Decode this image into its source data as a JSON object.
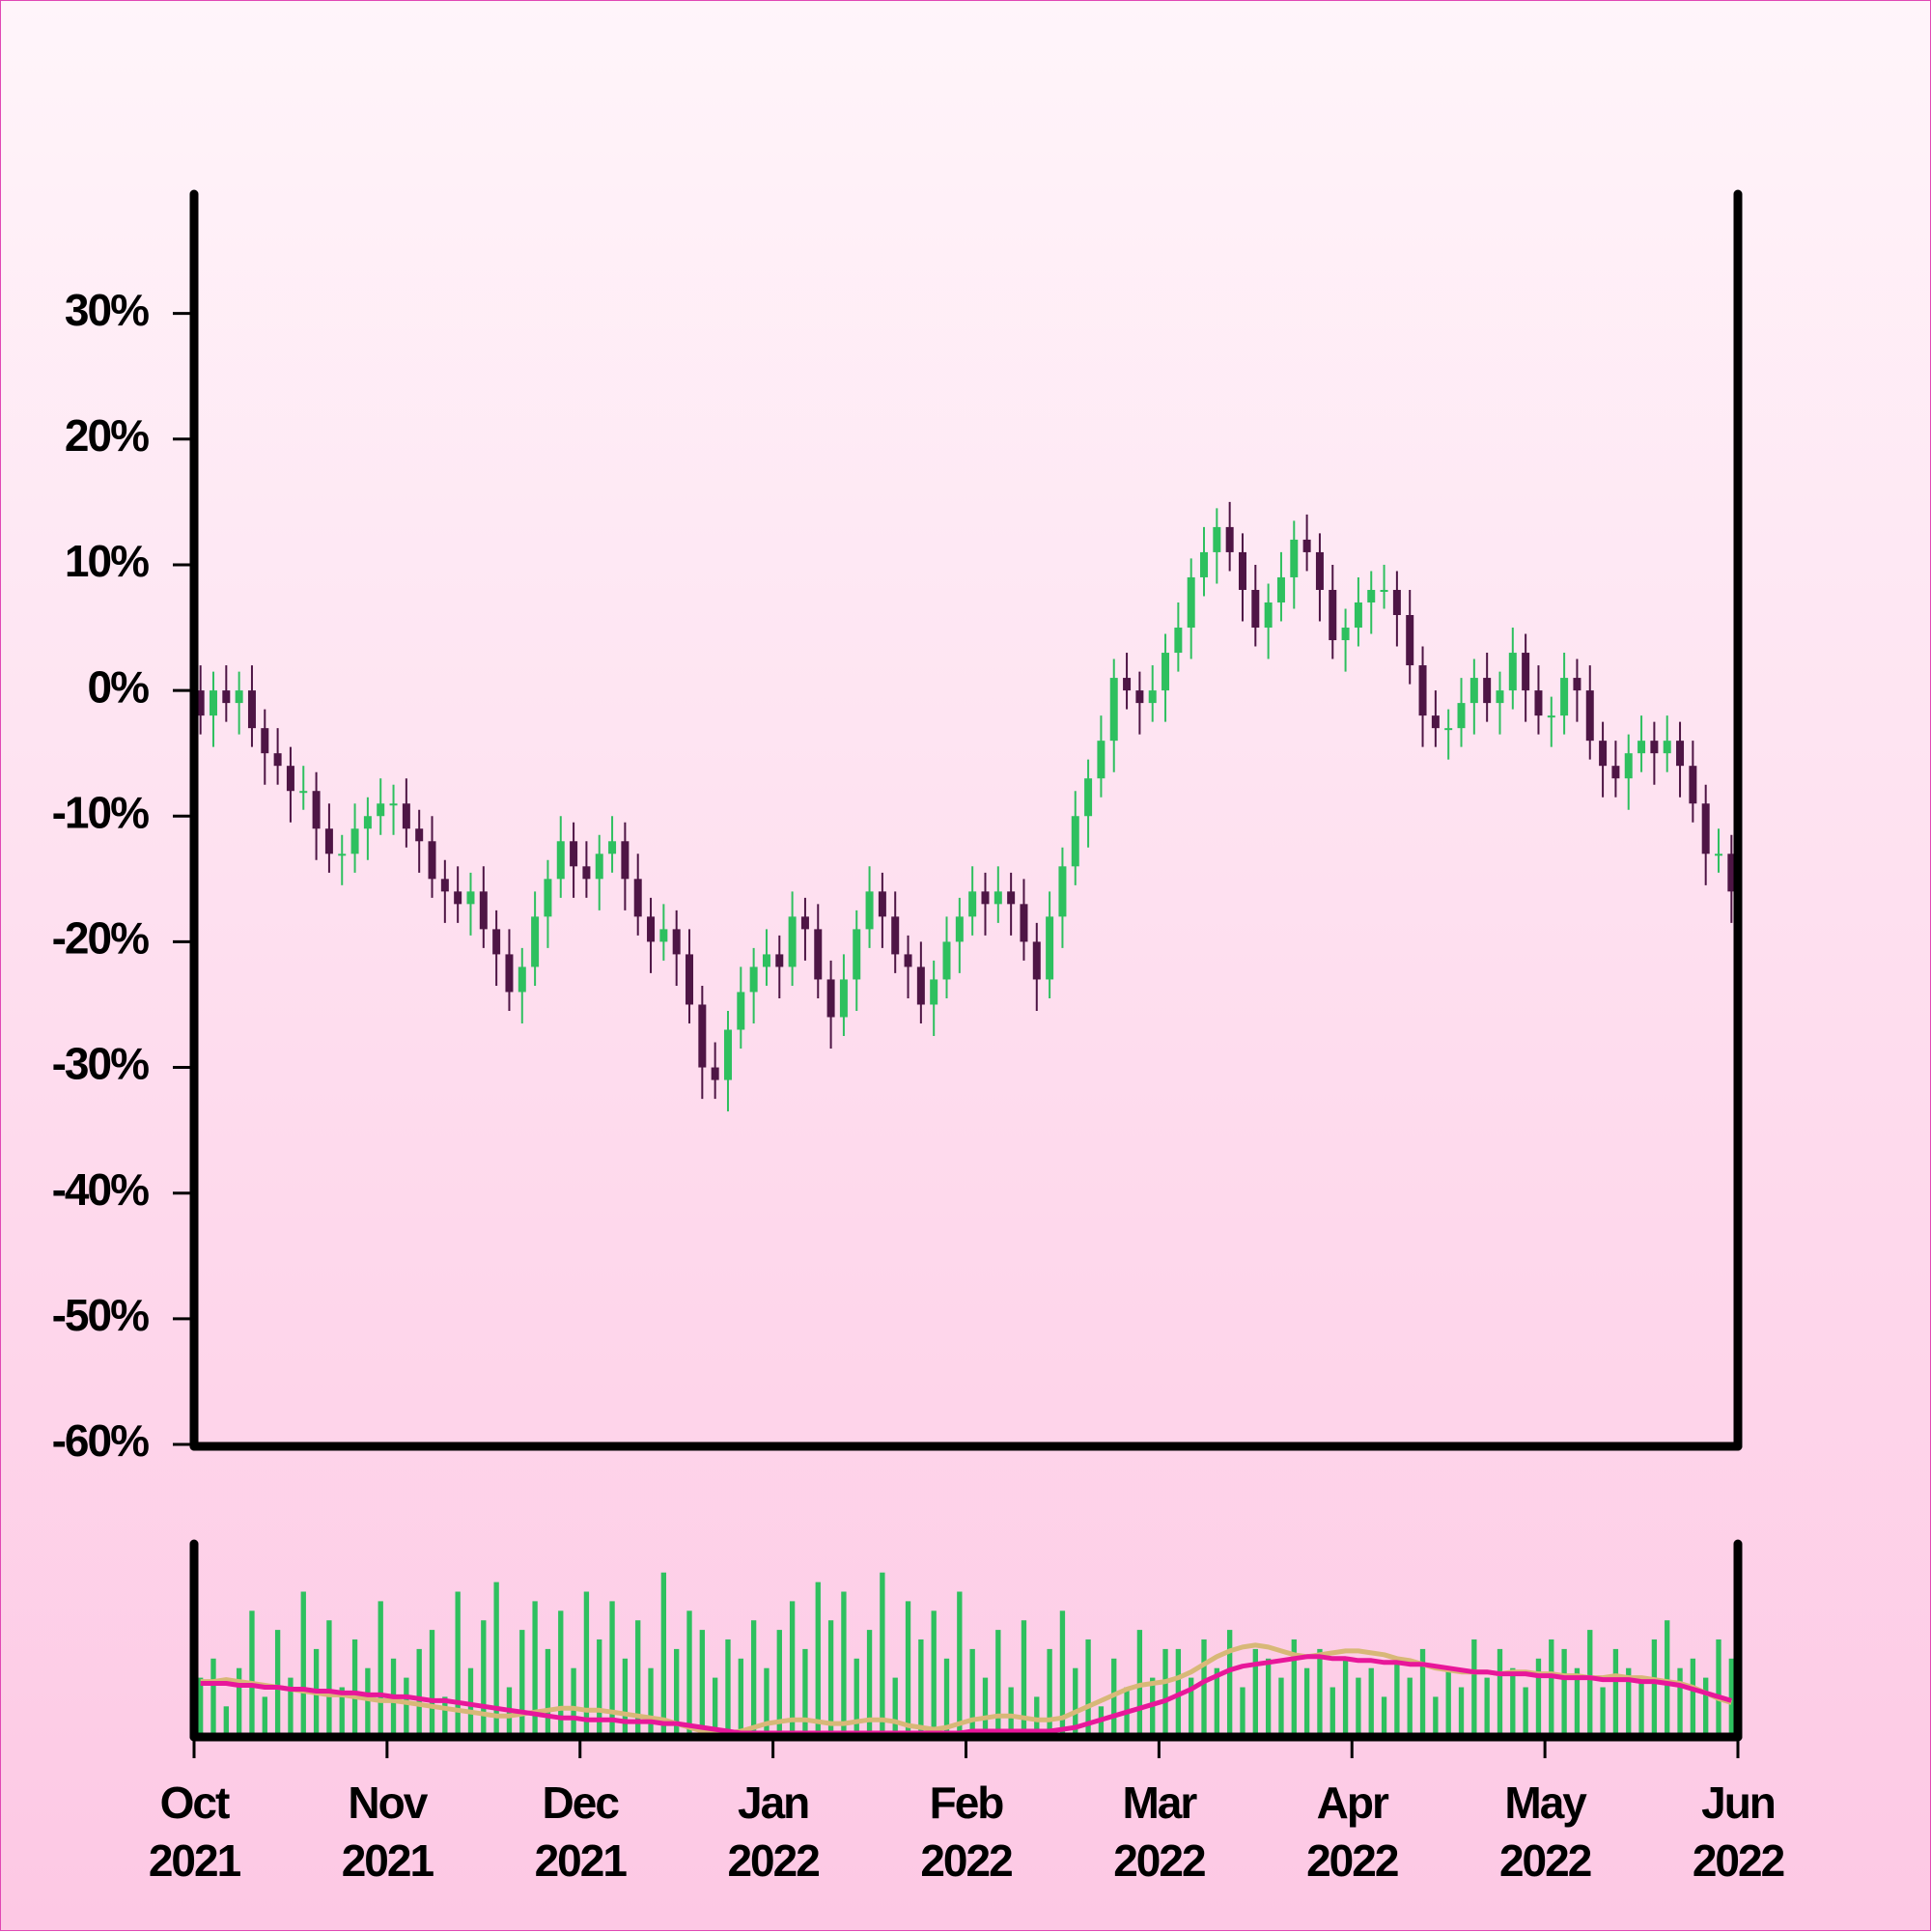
{
  "chart_data": [
    {
      "type": "candlestick",
      "up_color": "#2ec05f",
      "down_color": "#4e1545",
      "xlim": [
        -0.5,
        119.5
      ],
      "ylim": [
        -60,
        39.5
      ],
      "yticks": [
        {
          "value": -60,
          "label": "-60%"
        },
        {
          "value": -50,
          "label": "-50%"
        },
        {
          "value": -40,
          "label": "-40%"
        },
        {
          "value": -30,
          "label": "-30%"
        },
        {
          "value": -20,
          "label": "-20%"
        },
        {
          "value": -10,
          "label": "-10%"
        },
        {
          "value": 0,
          "label": "0%"
        },
        {
          "value": 10,
          "label": "10%"
        },
        {
          "value": 20,
          "label": "20%"
        },
        {
          "value": 30,
          "label": "30%"
        }
      ],
      "x": [
        0,
        1,
        2,
        3,
        4,
        5,
        6,
        7,
        8,
        9,
        10,
        11,
        12,
        13,
        14,
        15,
        16,
        17,
        18,
        19,
        20,
        21,
        22,
        23,
        24,
        25,
        26,
        27,
        28,
        29,
        30,
        31,
        32,
        33,
        34,
        35,
        36,
        37,
        38,
        39,
        40,
        41,
        42,
        43,
        44,
        45,
        46,
        47,
        48,
        49,
        50,
        51,
        52,
        53,
        54,
        55,
        56,
        57,
        58,
        59,
        60,
        61,
        62,
        63,
        64,
        65,
        66,
        67,
        68,
        69,
        70,
        71,
        72,
        73,
        74,
        75,
        76,
        77,
        78,
        79,
        80,
        81,
        82,
        83,
        84,
        85,
        86,
        87,
        88,
        89,
        90,
        91,
        92,
        93,
        94,
        95,
        96,
        97,
        98,
        99,
        100,
        101,
        102,
        103,
        104,
        105,
        106,
        107,
        108,
        109,
        110,
        111,
        112,
        113,
        114,
        115,
        116,
        117,
        118,
        119
      ],
      "open": [
        0,
        -2,
        0,
        -1,
        0,
        -3,
        -5,
        -6,
        -8,
        -8,
        -11,
        -13,
        -13,
        -11,
        -10,
        -9,
        -9,
        -11,
        -12,
        -15,
        -16,
        -17,
        -16,
        -19,
        -21,
        -24,
        -22,
        -18,
        -15,
        -12,
        -14,
        -15,
        -13,
        -12,
        -15,
        -18,
        -20,
        -19,
        -21,
        -25,
        -30,
        -31,
        -27,
        -24,
        -22,
        -21,
        -22,
        -18,
        -19,
        -23,
        -26,
        -23,
        -19,
        -16,
        -18,
        -21,
        -22,
        -25,
        -23,
        -20,
        -18,
        -16,
        -17,
        -16,
        -17,
        -20,
        -23,
        -18,
        -14,
        -10,
        -7,
        -4,
        1,
        0,
        -1,
        0,
        3,
        5,
        9,
        11,
        13,
        11,
        8,
        5,
        7,
        9,
        12,
        11,
        8,
        4,
        5,
        7,
        8,
        8,
        6,
        2,
        -2,
        -3,
        -3,
        -1,
        1,
        -1,
        0,
        3,
        0,
        -2,
        -2,
        1,
        0,
        -4,
        -6,
        -7,
        -5,
        -4,
        -5,
        -4,
        -6,
        -9,
        -13,
        -13
      ],
      "high": [
        2,
        1.5,
        2,
        1.5,
        2,
        -1.5,
        -3,
        -4.5,
        -6,
        -6.5,
        -9,
        -11.5,
        -9,
        -8.5,
        -7,
        -7.5,
        -7,
        -9.5,
        -10,
        -13.5,
        -14,
        -14.5,
        -14,
        -17.5,
        -19,
        -20.5,
        -16,
        -13.5,
        -10,
        -10.5,
        -12,
        -11.5,
        -10,
        -10.5,
        -13,
        -16.5,
        -17,
        -17.5,
        -19,
        -23.5,
        -28,
        -25.5,
        -22,
        -20.5,
        -19,
        -19.5,
        -16,
        -16.5,
        -17,
        -21.5,
        -21,
        -17.5,
        -14,
        -14.5,
        -16,
        -19.5,
        -20,
        -21.5,
        -18,
        -16.5,
        -14,
        -14.5,
        -14,
        -14.5,
        -15,
        -18.5,
        -16,
        -12.5,
        -8,
        -5.5,
        -2,
        2.5,
        3,
        1.5,
        2,
        4.5,
        7,
        10.5,
        13,
        14.5,
        15,
        12.5,
        10,
        8.5,
        11,
        13.5,
        14,
        12.5,
        10,
        6.5,
        9,
        9.5,
        10,
        9.5,
        8,
        3.5,
        0,
        -1.5,
        1,
        2.5,
        3,
        1.5,
        5,
        4.5,
        2,
        -0.5,
        3,
        2.5,
        2,
        -2.5,
        -4,
        -3.5,
        -2,
        -2.5,
        -2,
        -2.5,
        -4,
        -7.5,
        -11,
        -11.5
      ],
      "low": [
        -3.5,
        -4.5,
        -2.5,
        -3.5,
        -4.5,
        -7.5,
        -7.5,
        -10.5,
        -9.5,
        -13.5,
        -14.5,
        -15.5,
        -14.5,
        -13.5,
        -11.5,
        -11.5,
        -12.5,
        -14.5,
        -16.5,
        -18.5,
        -18.5,
        -19.5,
        -20.5,
        -23.5,
        -25.5,
        -26.5,
        -23.5,
        -20.5,
        -16.5,
        -16.5,
        -16.5,
        -17.5,
        -14.5,
        -17.5,
        -19.5,
        -22.5,
        -21.5,
        -23.5,
        -26.5,
        -32.5,
        -32.5,
        -33.5,
        -28.5,
        -26.5,
        -23.5,
        -24.5,
        -23.5,
        -21.5,
        -24.5,
        -28.5,
        -27.5,
        -25.5,
        -20.5,
        -20.5,
        -22.5,
        -24.5,
        -26.5,
        -27.5,
        -24.5,
        -22.5,
        -19.5,
        -19.5,
        -18.5,
        -19.5,
        -21.5,
        -25.5,
        -24.5,
        -20.5,
        -15.5,
        -12.5,
        -8.5,
        -6.5,
        -1.5,
        -3.5,
        -2.5,
        -2.5,
        1.5,
        2.5,
        7.5,
        8.5,
        9.5,
        5.5,
        3.5,
        2.5,
        5.5,
        6.5,
        9.5,
        5.5,
        2.5,
        1.5,
        3.5,
        4.5,
        6.5,
        3.5,
        0.5,
        -4.5,
        -4.5,
        -5.5,
        -4.5,
        -3.5,
        -2.5,
        -3.5,
        -1.5,
        -2.5,
        -3.5,
        -4.5,
        -3.5,
        -2.5,
        -5.5,
        -8.5,
        -8.5,
        -9.5,
        -6.5,
        -7.5,
        -6.5,
        -8.5,
        -10.5,
        -15.5,
        -14.5,
        -18.5
      ],
      "close": [
        -2,
        0,
        -1,
        0,
        -3,
        -5,
        -6,
        -8,
        -8,
        -11,
        -13,
        -13,
        -11,
        -10,
        -9,
        -9,
        -11,
        -12,
        -15,
        -16,
        -17,
        -16,
        -19,
        -21,
        -24,
        -22,
        -18,
        -15,
        -12,
        -14,
        -15,
        -13,
        -12,
        -15,
        -18,
        -20,
        -19,
        -21,
        -25,
        -30,
        -31,
        -27,
        -24,
        -22,
        -21,
        -22,
        -18,
        -19,
        -23,
        -26,
        -23,
        -19,
        -16,
        -18,
        -21,
        -22,
        -25,
        -23,
        -20,
        -18,
        -16,
        -17,
        -16,
        -17,
        -20,
        -23,
        -18,
        -14,
        -10,
        -7,
        -4,
        1,
        0,
        -1,
        0,
        3,
        5,
        9,
        11,
        13,
        11,
        8,
        5,
        7,
        9,
        12,
        11,
        8,
        4,
        5,
        7,
        8,
        8,
        6,
        2,
        -2,
        -3,
        -3,
        -1,
        1,
        -1,
        0,
        3,
        0,
        -2,
        -2,
        1,
        0,
        -4,
        -6,
        -7,
        -5,
        -4,
        -5,
        -4,
        -6,
        -9,
        -13,
        -13,
        -16
      ]
    },
    {
      "type": "bar",
      "color": "#2ec05f",
      "xlim": [
        -0.5,
        119.5
      ],
      "ylim": [
        0,
        100
      ],
      "xticks": [
        {
          "value": -0.5,
          "label": "Oct 2021"
        },
        {
          "value": 14.5,
          "label": "Nov 2021"
        },
        {
          "value": 29.5,
          "label": "Dec 2021"
        },
        {
          "value": 44.5,
          "label": "Jan 2022"
        },
        {
          "value": 59.5,
          "label": "Feb 2022"
        },
        {
          "value": 74.5,
          "label": "Mar 2022"
        },
        {
          "value": 89.5,
          "label": "Apr 2022"
        },
        {
          "value": 104.5,
          "label": "May 2022"
        },
        {
          "value": 119.5,
          "label": "Jun 2022"
        }
      ],
      "values": [
        30,
        40,
        15,
        35,
        65,
        20,
        55,
        30,
        75,
        45,
        60,
        25,
        50,
        35,
        70,
        40,
        30,
        45,
        55,
        20,
        75,
        35,
        60,
        80,
        25,
        55,
        70,
        45,
        65,
        35,
        75,
        50,
        70,
        40,
        60,
        35,
        85,
        45,
        65,
        55,
        30,
        50,
        40,
        60,
        35,
        55,
        70,
        45,
        80,
        60,
        75,
        40,
        55,
        85,
        30,
        70,
        50,
        65,
        40,
        75,
        45,
        30,
        55,
        25,
        60,
        20,
        45,
        65,
        35,
        50,
        15,
        40,
        25,
        55,
        30,
        45,
        45,
        30,
        50,
        35,
        55,
        25,
        45,
        40,
        30,
        50,
        35,
        45,
        25,
        40,
        30,
        35,
        20,
        40,
        30,
        45,
        20,
        35,
        25,
        50,
        30,
        45,
        35,
        25,
        40,
        50,
        45,
        35,
        55,
        25,
        45,
        35,
        30,
        50,
        60,
        35,
        40,
        30,
        50,
        40
      ],
      "series": [
        {
          "type": "line",
          "color": "#d8b878",
          "values": [
            28,
            28,
            29,
            28,
            27,
            26,
            25,
            24,
            23,
            22,
            21,
            21,
            20,
            19,
            18,
            18,
            17,
            16,
            15,
            14,
            13,
            12,
            11,
            10,
            10,
            11,
            12,
            13,
            14,
            14,
            13,
            13,
            12,
            11,
            10,
            9,
            8,
            6,
            4,
            2,
            1,
            1,
            2,
            4,
            6,
            7,
            8,
            8,
            7,
            6,
            6,
            7,
            8,
            8,
            7,
            5,
            4,
            3,
            4,
            6,
            8,
            9,
            10,
            10,
            9,
            8,
            8,
            9,
            12,
            15,
            18,
            21,
            24,
            26,
            27,
            28,
            30,
            33,
            37,
            41,
            44,
            46,
            47,
            46,
            44,
            42,
            41,
            42,
            43,
            44,
            44,
            43,
            42,
            40,
            39,
            37,
            35,
            34,
            33,
            33,
            33,
            32,
            33,
            33,
            32,
            32,
            31,
            31,
            30,
            30,
            31,
            30,
            30,
            29,
            28,
            27,
            25,
            22,
            19,
            17
          ]
        },
        {
          "type": "line",
          "color": "#e8179a",
          "values": [
            27,
            27,
            27,
            26,
            26,
            25,
            25,
            24,
            24,
            23,
            23,
            22,
            22,
            21,
            21,
            20,
            20,
            19,
            18,
            18,
            17,
            16,
            15,
            14,
            13,
            12,
            11,
            10,
            9,
            9,
            8,
            8,
            8,
            7,
            7,
            7,
            6,
            6,
            5,
            4,
            3,
            2,
            1,
            1,
            1,
            1,
            1,
            1,
            1,
            1,
            1,
            1,
            1,
            1,
            1,
            1,
            1,
            1,
            1,
            1,
            2,
            2,
            2,
            2,
            2,
            2,
            2,
            3,
            4,
            6,
            8,
            10,
            12,
            14,
            16,
            18,
            21,
            24,
            28,
            31,
            34,
            36,
            37,
            38,
            39,
            40,
            41,
            41,
            40,
            40,
            39,
            39,
            38,
            38,
            37,
            37,
            36,
            35,
            34,
            33,
            33,
            32,
            32,
            32,
            31,
            31,
            30,
            30,
            30,
            29,
            29,
            29,
            28,
            28,
            27,
            26,
            24,
            22,
            20,
            18
          ]
        }
      ]
    }
  ]
}
